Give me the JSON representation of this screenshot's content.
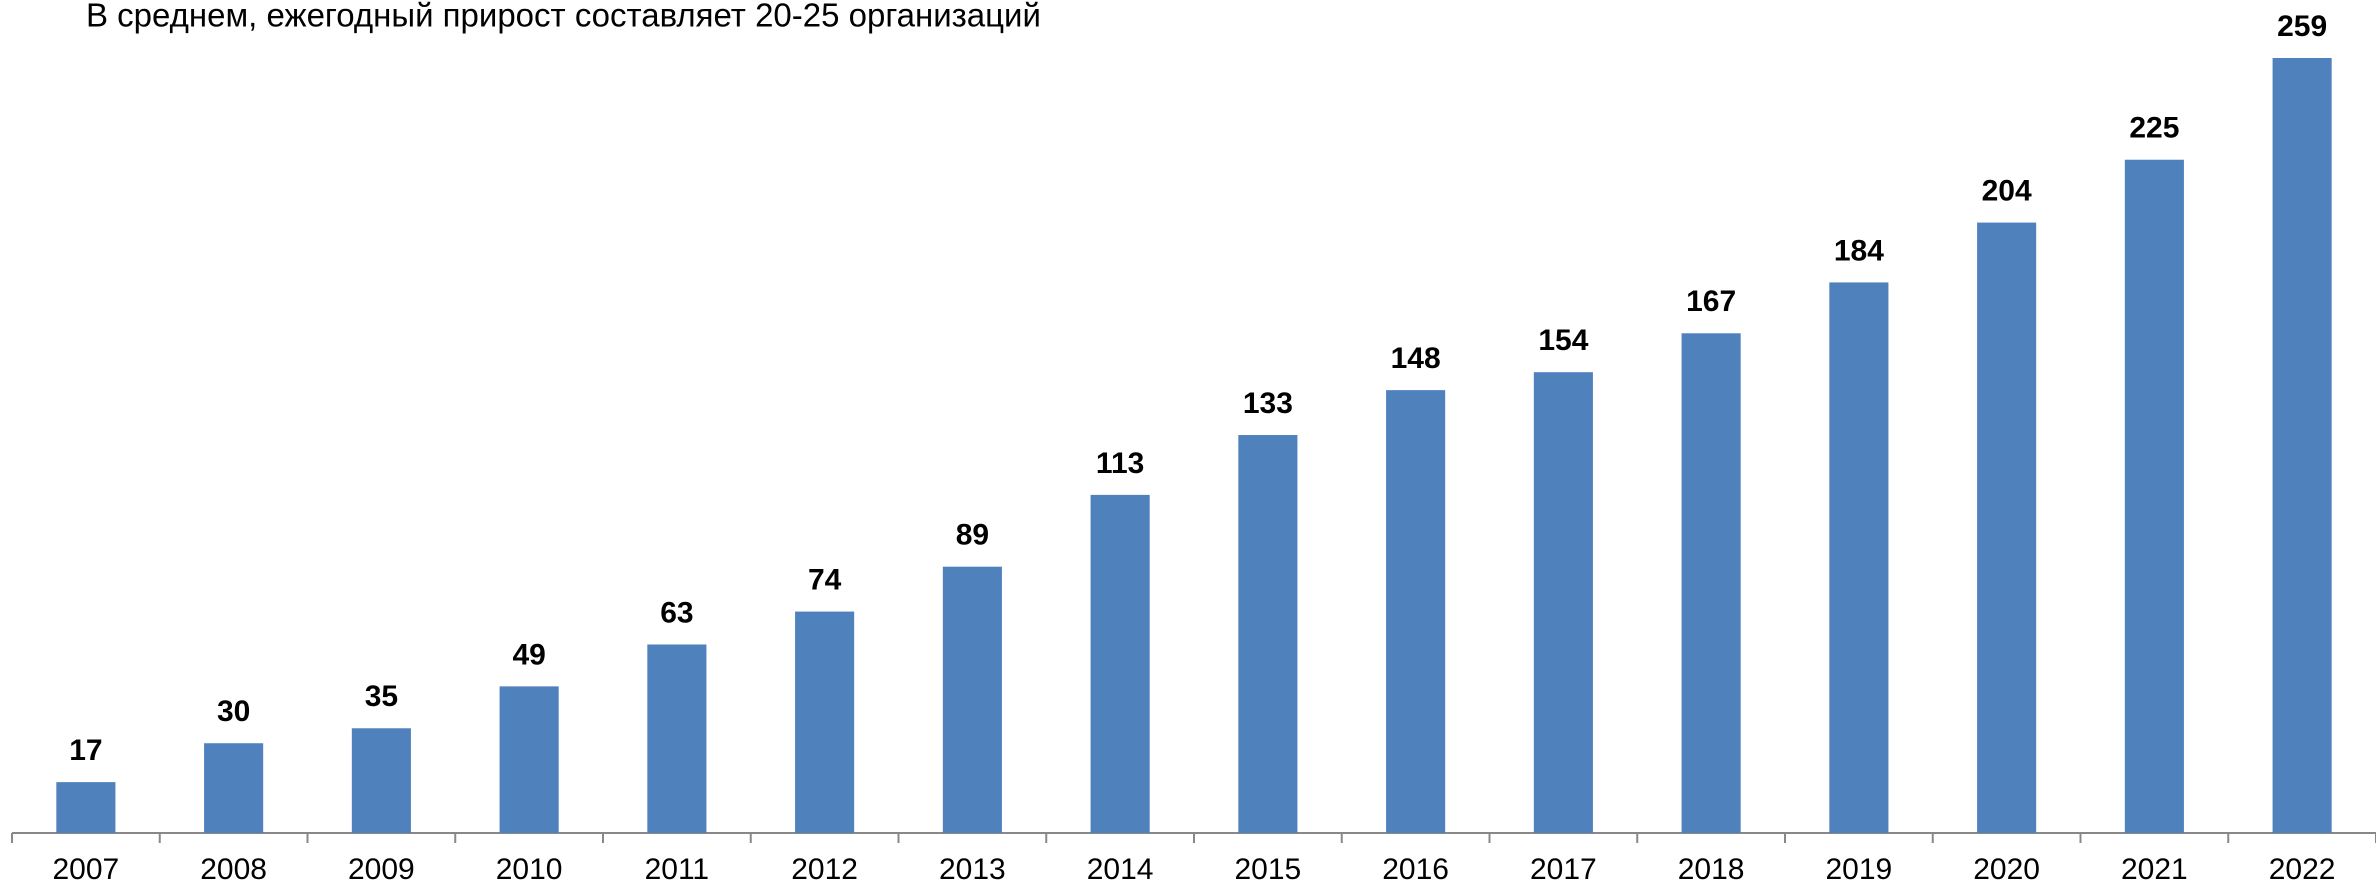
{
  "chart_data": {
    "type": "bar",
    "title": "В среднем, ежегодный прирост составляет 20-25 организаций",
    "categories": [
      "2007",
      "2008",
      "2009",
      "2010",
      "2011",
      "2012",
      "2013",
      "2014",
      "2015",
      "2016",
      "2017",
      "2018",
      "2019",
      "2020",
      "2021",
      "2022"
    ],
    "values": [
      17,
      30,
      35,
      49,
      63,
      74,
      89,
      113,
      133,
      148,
      154,
      167,
      184,
      204,
      225,
      259
    ],
    "color": "#4f81bd",
    "ylim": [
      0,
      259
    ],
    "grid": false
  }
}
